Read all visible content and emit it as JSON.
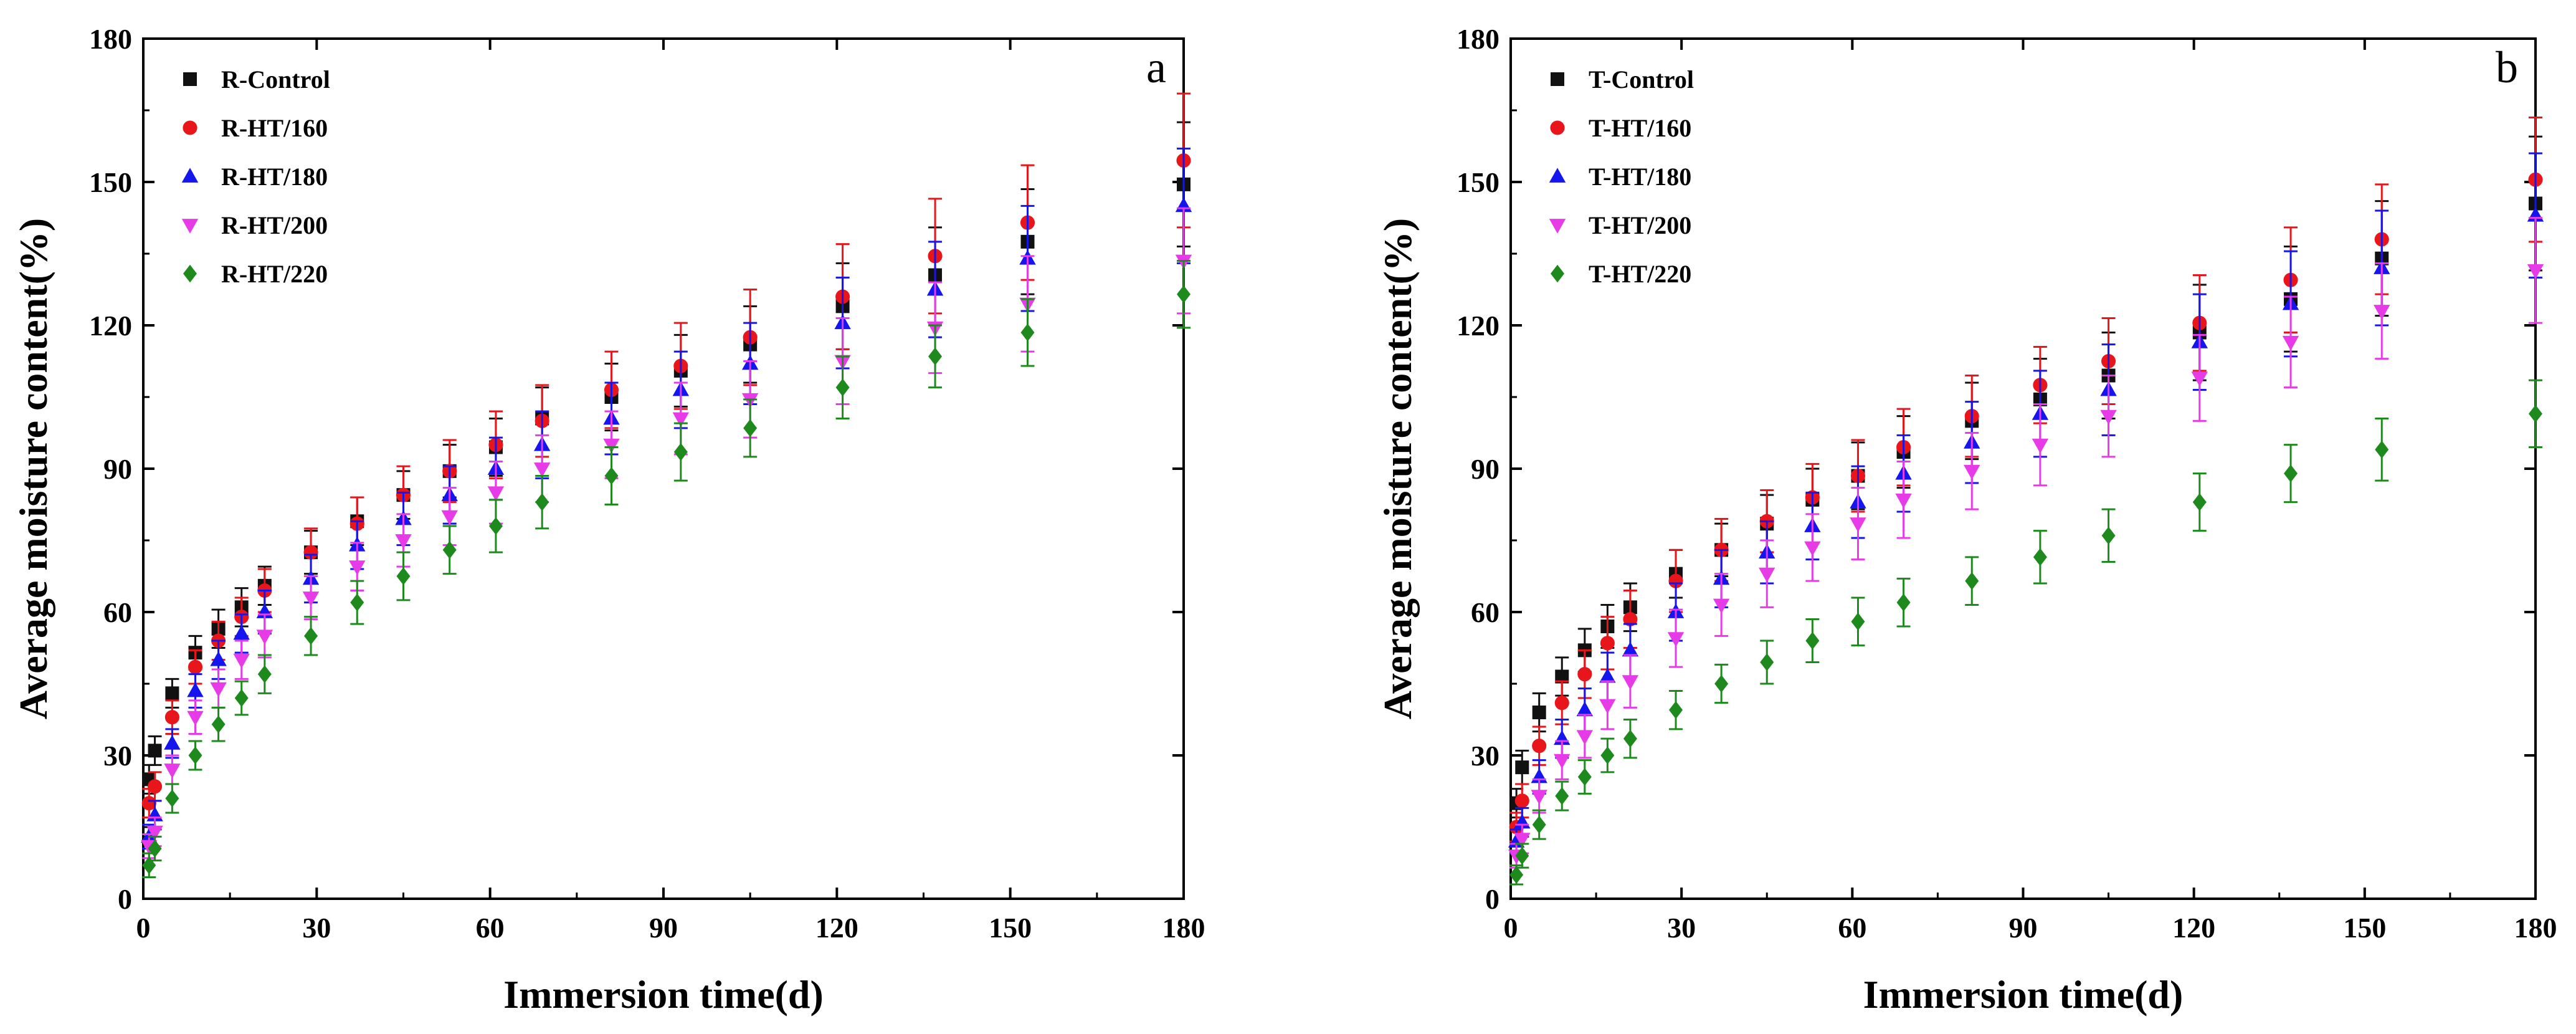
{
  "chart_data": [
    {
      "type": "scatter",
      "panel_label": "a",
      "xlabel": "Immersion time(d)",
      "ylabel": "Average moisture content(%)",
      "xlim": [
        0,
        180
      ],
      "ylim": [
        0,
        180
      ],
      "xticks": [
        "0",
        "30",
        "60",
        "90",
        "120",
        "150",
        "180"
      ],
      "yticks": [
        "0",
        "30",
        "60",
        "90",
        "120",
        "150",
        "180"
      ],
      "legend_position": "top-left",
      "x": [
        1,
        2,
        5,
        9,
        13,
        17,
        21,
        29,
        37,
        45,
        53,
        61,
        69,
        81,
        93,
        105,
        121,
        137,
        153,
        180
      ],
      "series": [
        {
          "name": "R-Control",
          "color": "#111111",
          "marker": "square",
          "values": [
            25,
            31,
            43,
            51.5,
            56.5,
            61,
            65.5,
            72.5,
            79,
            84.5,
            89.5,
            94.5,
            100.5,
            105,
            110.5,
            116,
            124,
            130.5,
            137.5,
            149.5
          ],
          "errors": [
            3,
            3,
            3,
            3.5,
            4,
            4,
            4,
            4.5,
            5,
            5,
            5.5,
            6,
            6.5,
            7,
            7.5,
            8,
            9,
            10,
            11,
            13
          ]
        },
        {
          "name": "R-HT/160",
          "color": "#e8151b",
          "marker": "circle",
          "values": [
            20,
            23.5,
            38,
            48.5,
            54,
            59,
            64.5,
            72.5,
            78.5,
            84.5,
            89.5,
            95,
            100,
            106.5,
            111.5,
            117.5,
            126,
            134.5,
            141.5,
            154.5
          ],
          "errors": [
            3,
            3,
            3.5,
            3.5,
            4,
            4,
            4.5,
            5,
            5.5,
            6,
            6.5,
            7,
            7.5,
            8,
            9,
            10,
            11,
            12,
            12,
            14
          ]
        },
        {
          "name": "R-HT/180",
          "color": "#1515ee",
          "marker": "triangle-up",
          "values": [
            13,
            17.5,
            32.5,
            43.5,
            50,
            55.5,
            60,
            67,
            74,
            79.5,
            84.5,
            90,
            95,
            100.5,
            106.5,
            112,
            120.5,
            127.5,
            134,
            145
          ],
          "errors": [
            2.5,
            3,
            3,
            3.5,
            4,
            4,
            4.5,
            5,
            5,
            5.5,
            6,
            6.5,
            7,
            7.5,
            8,
            8.5,
            9.5,
            10,
            11,
            12
          ]
        },
        {
          "name": "R-HT/200",
          "color": "#e83be8",
          "marker": "triangle-down",
          "values": [
            11,
            14,
            27,
            38,
            44,
            50,
            55,
            63,
            69.5,
            75,
            80,
            85,
            90,
            95,
            100.5,
            104.5,
            112.5,
            119.5,
            124.5,
            133.5
          ],
          "errors": [
            2.5,
            3,
            3,
            3.5,
            4,
            4,
            4.5,
            4.5,
            5,
            5.5,
            6,
            6.5,
            7,
            7,
            7.5,
            8,
            9,
            9.5,
            10,
            11
          ]
        },
        {
          "name": "R-HT/220",
          "color": "#1e8a1e",
          "marker": "diamond",
          "values": [
            7,
            10.5,
            21,
            30,
            36.5,
            42,
            47,
            55,
            62,
            67.5,
            73,
            78,
            83,
            88.5,
            93.5,
            98.5,
            107,
            113.5,
            118.5,
            126.5
          ],
          "errors": [
            2.5,
            2.5,
            3,
            3,
            3.5,
            3.5,
            4,
            4,
            4.5,
            5,
            5,
            5.5,
            5.5,
            6,
            6,
            6,
            6.5,
            6.5,
            7,
            7
          ]
        }
      ]
    },
    {
      "type": "scatter",
      "panel_label": "b",
      "xlabel": "Immersion time(d)",
      "ylabel": "Average moisture content(%)",
      "xlim": [
        0,
        180
      ],
      "ylim": [
        0,
        180
      ],
      "xticks": [
        "0",
        "30",
        "60",
        "90",
        "120",
        "150",
        "180"
      ],
      "yticks": [
        "0",
        "30",
        "60",
        "90",
        "120",
        "150",
        "180"
      ],
      "legend_position": "top-left",
      "x": [
        1,
        2,
        5,
        9,
        13,
        17,
        21,
        29,
        37,
        45,
        53,
        61,
        69,
        81,
        93,
        105,
        121,
        137,
        153,
        180
      ],
      "series": [
        {
          "name": "T-Control",
          "color": "#111111",
          "marker": "square",
          "values": [
            20,
            27.5,
            39,
            46.5,
            52,
            57,
            61,
            68,
            73,
            78.5,
            83.5,
            88.5,
            93.5,
            100,
            104.5,
            109.5,
            118.5,
            125.5,
            134,
            145.5
          ],
          "errors": [
            3,
            3.5,
            4,
            4,
            4.5,
            4.5,
            5,
            5,
            5.5,
            6,
            6.5,
            7,
            7.5,
            8,
            8.5,
            9,
            10,
            11,
            12,
            14
          ]
        },
        {
          "name": "T-HT/160",
          "color": "#e8151b",
          "marker": "circle",
          "values": [
            15,
            20.5,
            32,
            41,
            47,
            53.5,
            58.5,
            66.5,
            73,
            79,
            84,
            88.5,
            94.5,
            101,
            107.5,
            112.5,
            120.5,
            129.5,
            138,
            150.5
          ],
          "errors": [
            3,
            3.5,
            4,
            4.5,
            5,
            5.5,
            6,
            6.5,
            6.5,
            6.5,
            7,
            7.5,
            8,
            8.5,
            8,
            9,
            10,
            11,
            11.5,
            13
          ]
        },
        {
          "name": "T-HT/180",
          "color": "#1515ee",
          "marker": "triangle-up",
          "values": [
            12,
            16,
            25.5,
            33.5,
            39.5,
            46.5,
            52,
            60,
            67,
            72.5,
            78,
            83,
            89,
            95.5,
            101.5,
            106.5,
            116.5,
            124.5,
            132,
            143
          ],
          "errors": [
            2.5,
            3,
            3.5,
            4,
            4.5,
            5,
            5.5,
            6,
            6,
            6.5,
            7,
            7.5,
            8,
            8.5,
            9,
            9.5,
            10,
            11,
            12,
            13
          ]
        },
        {
          "name": "T-HT/200",
          "color": "#e83be8",
          "marker": "triangle-down",
          "values": [
            9,
            12.5,
            21.5,
            29,
            34,
            40.5,
            45.5,
            54.5,
            61.5,
            68,
            73.5,
            78.5,
            83.5,
            89.5,
            95,
            101,
            109,
            116.5,
            123,
            131.5
          ],
          "errors": [
            2.5,
            3,
            3.5,
            4,
            4.5,
            5,
            5.5,
            6,
            6.5,
            7,
            7,
            7.5,
            8,
            8,
            8.5,
            8.5,
            9,
            9.5,
            10,
            11
          ]
        },
        {
          "name": "T-HT/220",
          "color": "#1e8a1e",
          "marker": "diamond",
          "values": [
            5,
            9,
            15.5,
            21.5,
            25.5,
            30,
            33.5,
            39.5,
            45,
            49.5,
            54,
            58,
            62,
            66.5,
            71.5,
            76,
            83,
            89,
            94,
            101.5
          ],
          "errors": [
            2,
            2.5,
            3,
            3,
            3.5,
            3.5,
            4,
            4,
            4,
            4.5,
            4.5,
            5,
            5,
            5,
            5.5,
            5.5,
            6,
            6,
            6.5,
            7
          ]
        }
      ]
    }
  ]
}
